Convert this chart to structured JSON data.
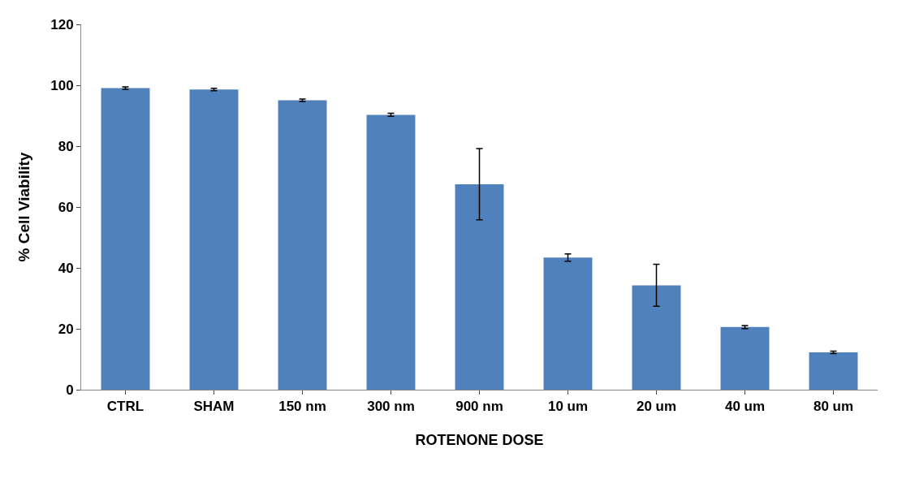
{
  "chart_data": {
    "type": "bar",
    "xlabel": "ROTENONE DOSE",
    "ylabel": "% Cell Viability",
    "categories": [
      "CTRL",
      "SHAM",
      "150 nm",
      "300 nm",
      "900 nm",
      "10 um",
      "20 um",
      "40 um",
      "80 um"
    ],
    "values": [
      99.1,
      98.6,
      95.1,
      90.3,
      67.5,
      43.4,
      34.3,
      20.6,
      12.3
    ],
    "errors": [
      0.4,
      0.4,
      0.4,
      0.5,
      11.7,
      1.2,
      6.9,
      0.5,
      0.4
    ],
    "color": "#4f81bd",
    "ylim": [
      0,
      120
    ],
    "yticks": [
      0,
      20,
      40,
      60,
      80,
      100,
      120
    ],
    "grid": false
  }
}
